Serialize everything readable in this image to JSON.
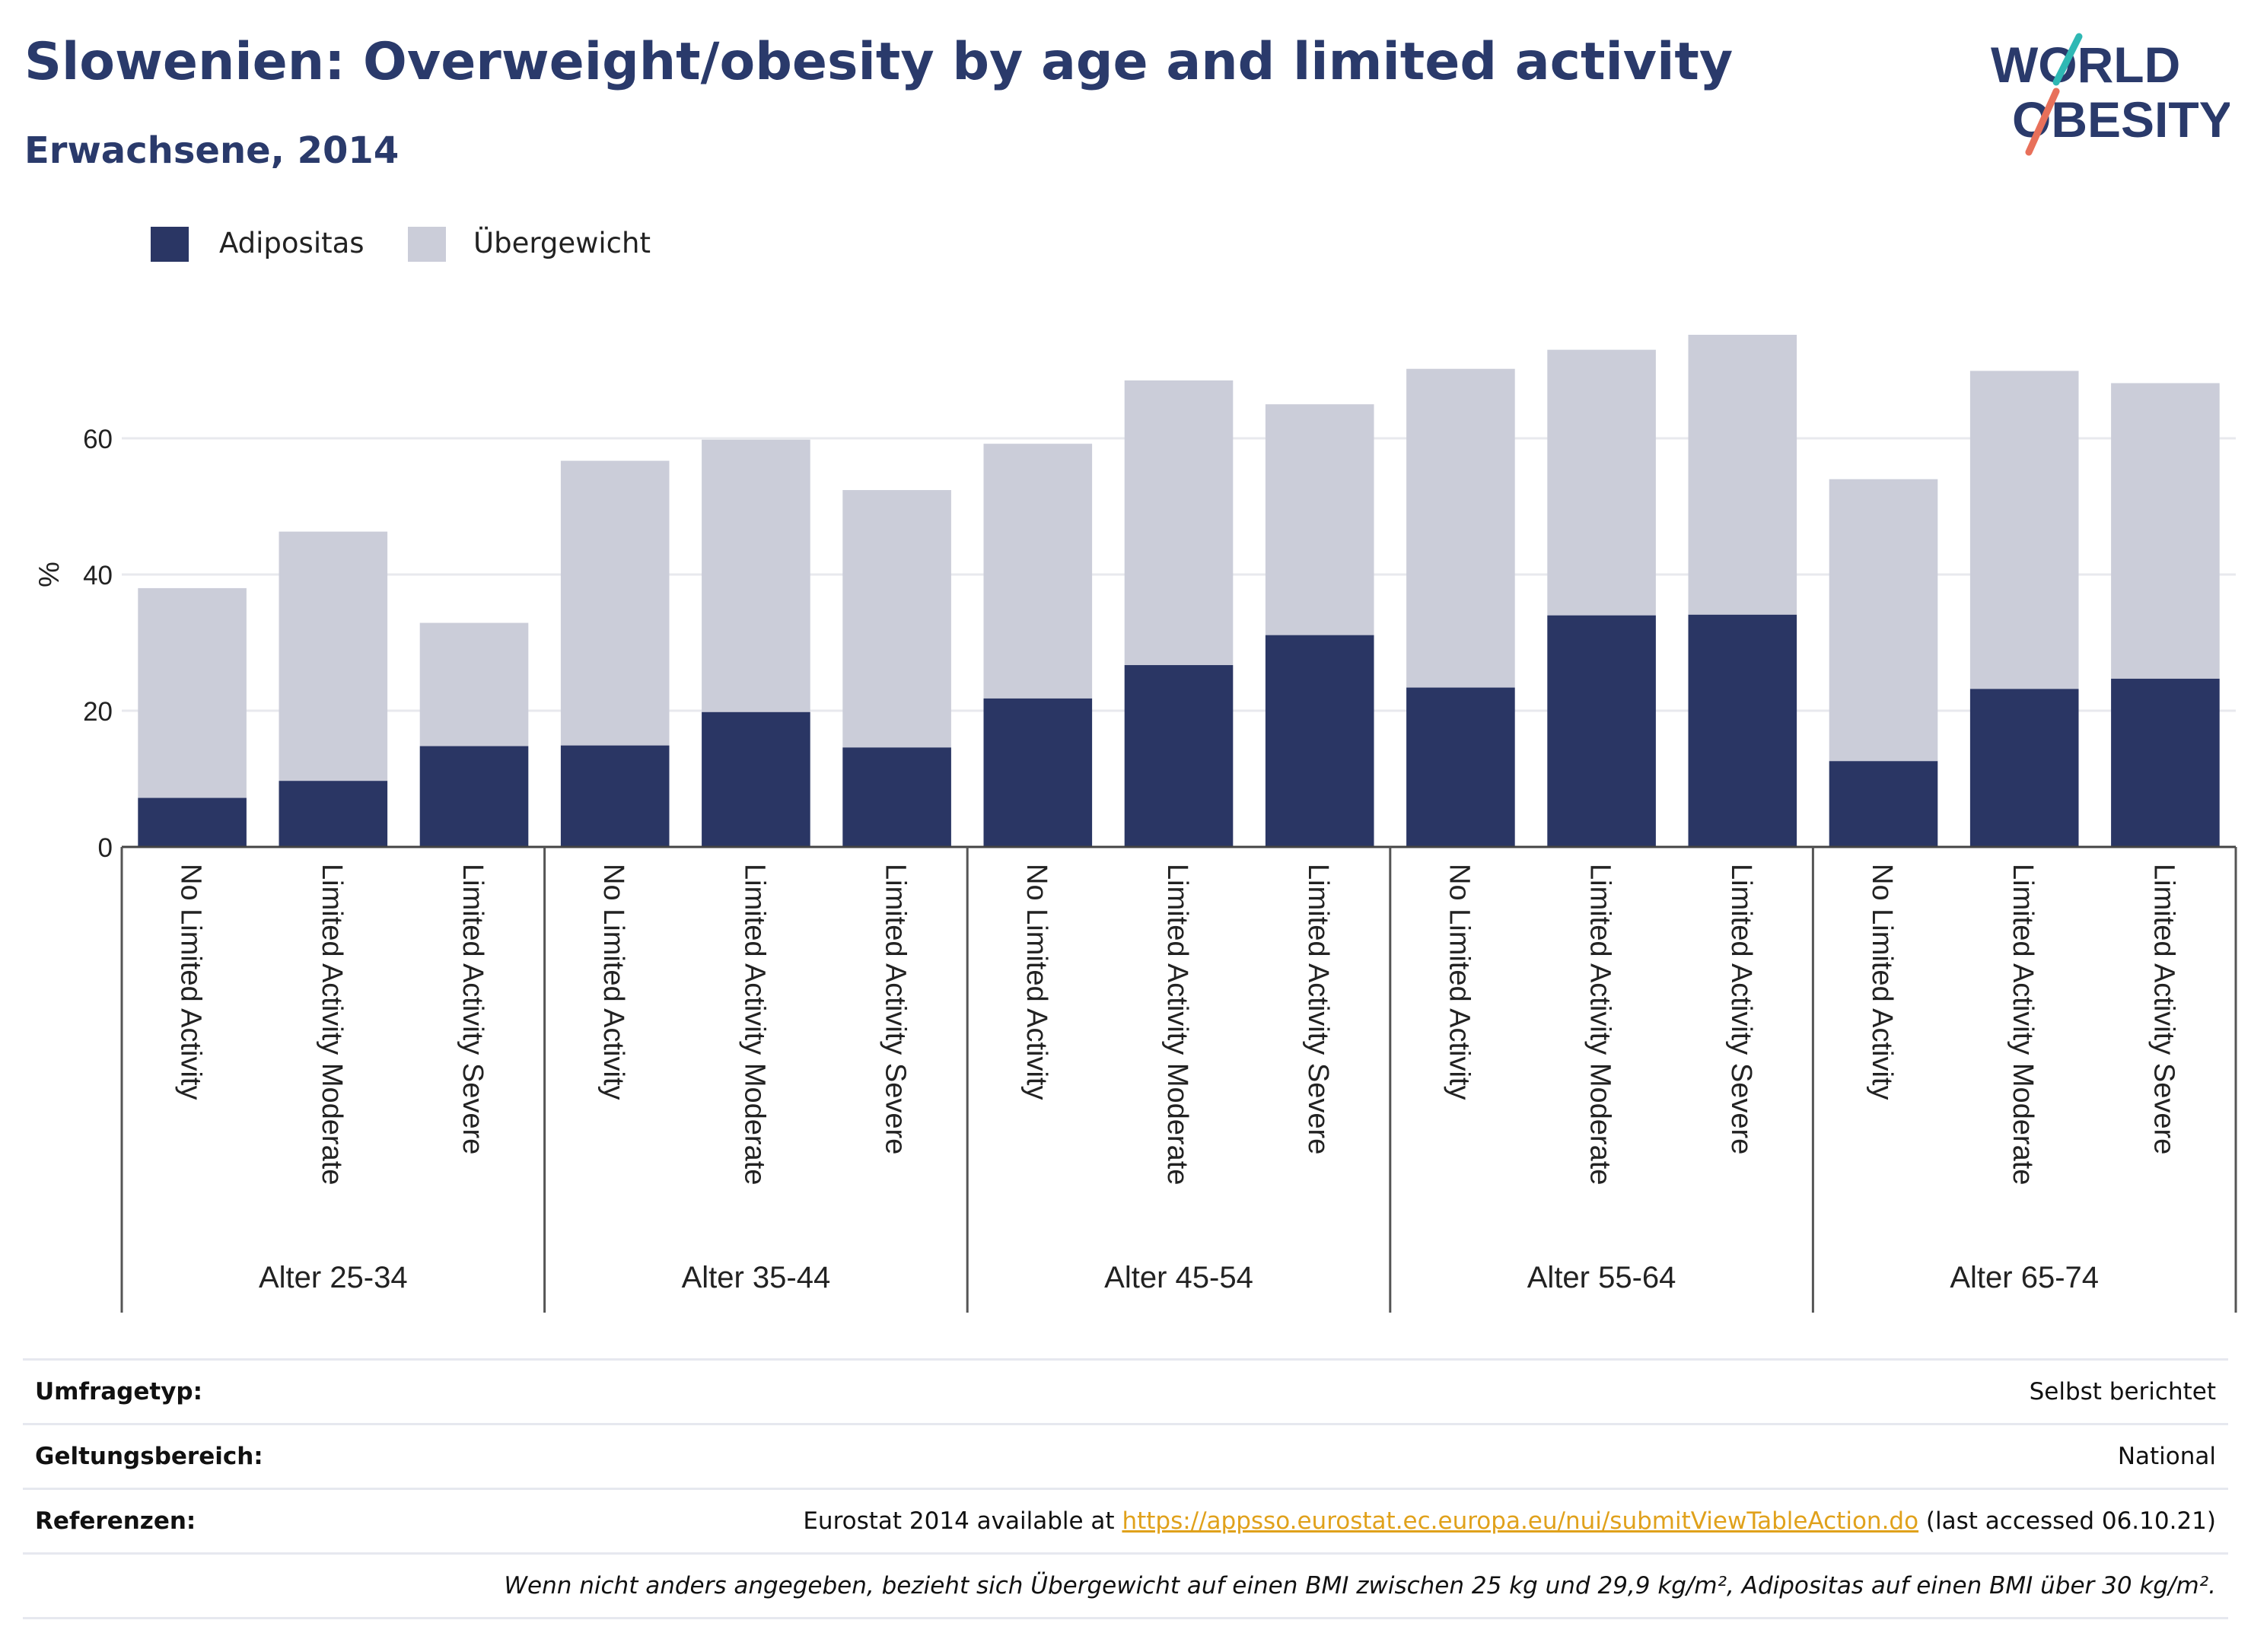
{
  "header": {
    "title": "Slowenien: Overweight/obesity by age and limited activity",
    "subtitle": "Erwachsene, 2014"
  },
  "logo": {
    "line1": "WORLD",
    "line2": "OBESITY"
  },
  "colors": {
    "obesity": "#2a3664",
    "overweight": "#cbcdd9",
    "title": "#2a3a6b",
    "link": "#e0a11b"
  },
  "chart_data": {
    "type": "bar",
    "stacked": true,
    "ylabel": "%",
    "ylim": [
      0,
      80
    ],
    "yticks": [
      0,
      20,
      40,
      60
    ],
    "grid": true,
    "legend_position": "top-left",
    "categories": [
      "No Limited Activity",
      "Limited Activity Moderate",
      "Limited Activity Severe",
      "No Limited Activity",
      "Limited Activity Moderate",
      "Limited Activity Severe",
      "No Limited Activity",
      "Limited Activity Moderate",
      "Limited Activity Severe",
      "No Limited Activity",
      "Limited Activity Moderate",
      "Limited Activity Severe",
      "No Limited Activity",
      "Limited Activity Moderate",
      "Limited Activity Severe"
    ],
    "groups": [
      "Alter 25-34",
      "Alter 35-44",
      "Alter 45-54",
      "Alter 55-64",
      "Alter 65-74"
    ],
    "series": [
      {
        "name": "Adipositas",
        "values": [
          7.2,
          9.7,
          14.8,
          14.9,
          19.8,
          14.6,
          21.8,
          26.7,
          31.1,
          23.4,
          34.0,
          34.1,
          12.6,
          23.2,
          24.7
        ]
      },
      {
        "name": "Übergewicht",
        "values": [
          30.8,
          36.6,
          18.1,
          41.8,
          40.0,
          37.8,
          37.4,
          41.8,
          33.9,
          46.8,
          39.0,
          41.1,
          41.4,
          46.7,
          43.4
        ]
      }
    ]
  },
  "info": {
    "survey_type_label": "Umfragetyp:",
    "survey_type_value": "Selbst berichtet",
    "coverage_label": "Geltungsbereich:",
    "coverage_value": "National",
    "references_label": "Referenzen:",
    "references_prefix": "Eurostat 2014 available at ",
    "references_link": "https://appsso.eurostat.ec.europa.eu/nui/submitViewTableAction.do",
    "references_suffix": " (last accessed 06.10.21)",
    "note": "Wenn nicht anders angegeben, bezieht sich Übergewicht auf einen BMI zwischen 25 kg und 29,9 kg/m², Adipositas auf einen BMI über 30 kg/m²."
  }
}
